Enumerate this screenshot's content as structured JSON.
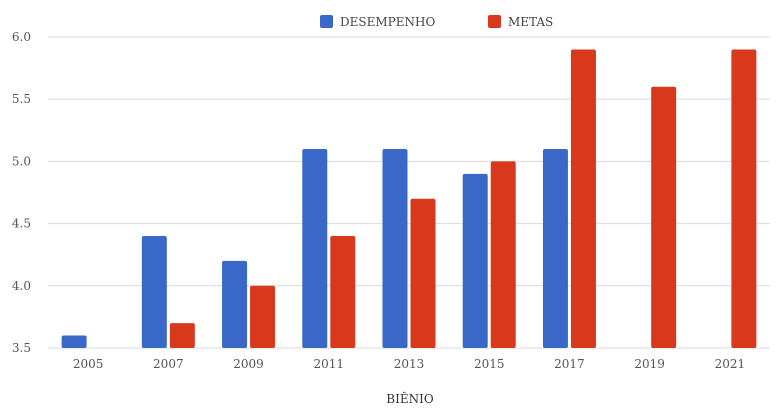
{
  "chart_data": {
    "type": "bar",
    "title": "",
    "xlabel": "BIÊNIO",
    "ylabel": "",
    "categories": [
      "2005",
      "2007",
      "2009",
      "2011",
      "2013",
      "2015",
      "2017",
      "2019",
      "2021"
    ],
    "series": [
      {
        "name": "DESEMPENHO",
        "color": "#3a68c8",
        "values": [
          3.6,
          4.4,
          4.2,
          5.1,
          5.1,
          4.9,
          5.1,
          null,
          null
        ]
      },
      {
        "name": "METAS",
        "color": "#d8391c",
        "values": [
          null,
          3.7,
          4.0,
          4.4,
          4.7,
          5.0,
          5.9,
          5.6,
          5.9
        ]
      }
    ],
    "ylim": [
      3.5,
      6.0
    ],
    "yticks": [
      "3.5",
      "4.0",
      "4.5",
      "5.0",
      "5.5",
      "6.0"
    ],
    "grid": true,
    "legend_position": "top-center"
  }
}
